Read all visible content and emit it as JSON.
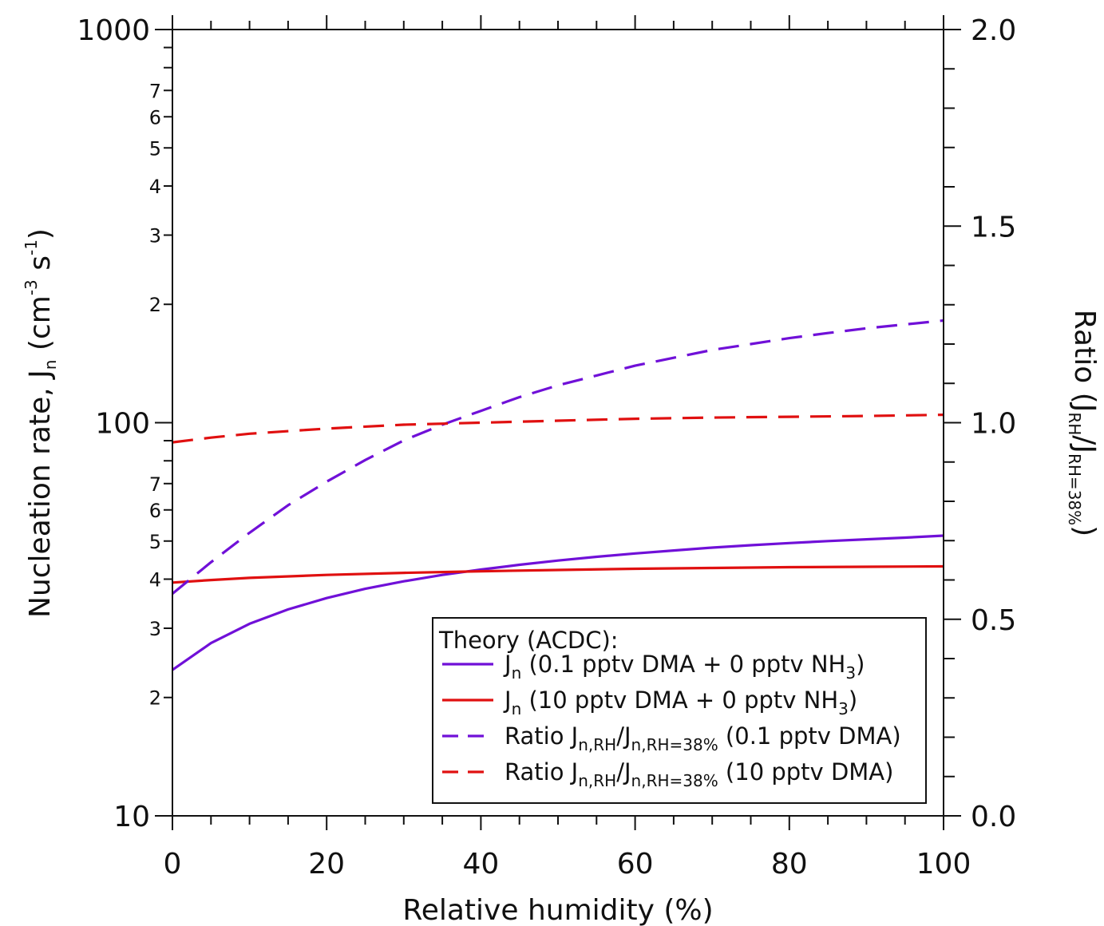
{
  "chart_data": {
    "type": "line",
    "xlabel": "Relative humidity (%)",
    "ylabel_left": {
      "main": "Nucleation rate, J",
      "sub": "n",
      "unit_open": " (cm",
      "unit_exp1": "-3",
      "unit_mid": " s",
      "unit_exp2": "-1",
      "unit_close": ")"
    },
    "ylabel_right": {
      "main": "Ratio (J",
      "sub1": "RH",
      "mid": "/J",
      "sub2": "RH=38%",
      "close": ")"
    },
    "xlim": [
      0,
      100
    ],
    "ylim_left": [
      10,
      1000
    ],
    "ylim_right": [
      0,
      2
    ],
    "left_scale": "log",
    "right_scale": "linear",
    "grid": false,
    "x_ticks": [
      "0",
      "20",
      "40",
      "60",
      "80",
      "100"
    ],
    "y_left_major_labels": [
      "10",
      "100",
      "1000"
    ],
    "y_left_minor_labels": [
      "2",
      "3",
      "4",
      "5",
      "6",
      "7"
    ],
    "y_right_labels": [
      "0.0",
      "0.5",
      "1.0",
      "1.5",
      "2.0"
    ],
    "colors": {
      "purple": "#7010d8",
      "red": "#e01010"
    },
    "legend": {
      "position": "bottom-right",
      "title": "Theory (ACDC):",
      "entries": [
        {
          "pre": "J",
          "sub": "n",
          "post": " (0.1 pptv DMA + 0 pptv NH",
          "sub2": "3",
          "post2": ")"
        },
        {
          "pre": "J",
          "sub": "n",
          "post": " (10 pptv DMA + 0 pptv NH",
          "sub2": "3",
          "post2": ")"
        },
        {
          "pre": "Ratio J",
          "sub": "n,RH",
          "post": "/J",
          "sub2": "n,RH=38%",
          "post2": " (0.1 pptv DMA)"
        },
        {
          "pre": "Ratio J",
          "sub": "n,RH",
          "post": "/J",
          "sub2": "n,RH=38%",
          "post2": " (10 pptv DMA)"
        }
      ]
    },
    "series": [
      {
        "axis": "left",
        "color": "#7010d8",
        "style": "solid",
        "x": [
          0,
          5,
          10,
          15,
          20,
          25,
          30,
          35,
          40,
          45,
          50,
          55,
          60,
          65,
          70,
          75,
          80,
          85,
          90,
          95,
          100
        ],
        "y": [
          23.5,
          27.5,
          30.8,
          33.5,
          35.8,
          37.8,
          39.5,
          41.0,
          42.3,
          43.5,
          44.6,
          45.6,
          46.5,
          47.3,
          48.1,
          48.8,
          49.4,
          50.0,
          50.5,
          51.0,
          51.6
        ]
      },
      {
        "axis": "left",
        "color": "#e01010",
        "style": "solid",
        "x": [
          0,
          5,
          10,
          20,
          30,
          40,
          50,
          60,
          70,
          80,
          90,
          100
        ],
        "y": [
          39.2,
          39.8,
          40.3,
          41.0,
          41.5,
          41.9,
          42.2,
          42.5,
          42.7,
          42.9,
          43.0,
          43.1
        ]
      },
      {
        "axis": "right",
        "color": "#7010d8",
        "style": "dashed",
        "x": [
          0,
          5,
          10,
          15,
          20,
          25,
          30,
          35,
          40,
          45,
          50,
          55,
          60,
          65,
          70,
          75,
          80,
          85,
          90,
          95,
          100
        ],
        "y": [
          0.565,
          0.645,
          0.72,
          0.79,
          0.85,
          0.905,
          0.955,
          0.995,
          1.03,
          1.065,
          1.095,
          1.12,
          1.145,
          1.165,
          1.185,
          1.2,
          1.215,
          1.228,
          1.24,
          1.25,
          1.26
        ]
      },
      {
        "axis": "right",
        "color": "#e01010",
        "style": "dashed",
        "x": [
          0,
          5,
          10,
          20,
          30,
          40,
          50,
          60,
          70,
          80,
          90,
          100
        ],
        "y": [
          0.95,
          0.962,
          0.972,
          0.985,
          0.995,
          1.0,
          1.005,
          1.01,
          1.013,
          1.015,
          1.017,
          1.02
        ]
      }
    ]
  }
}
